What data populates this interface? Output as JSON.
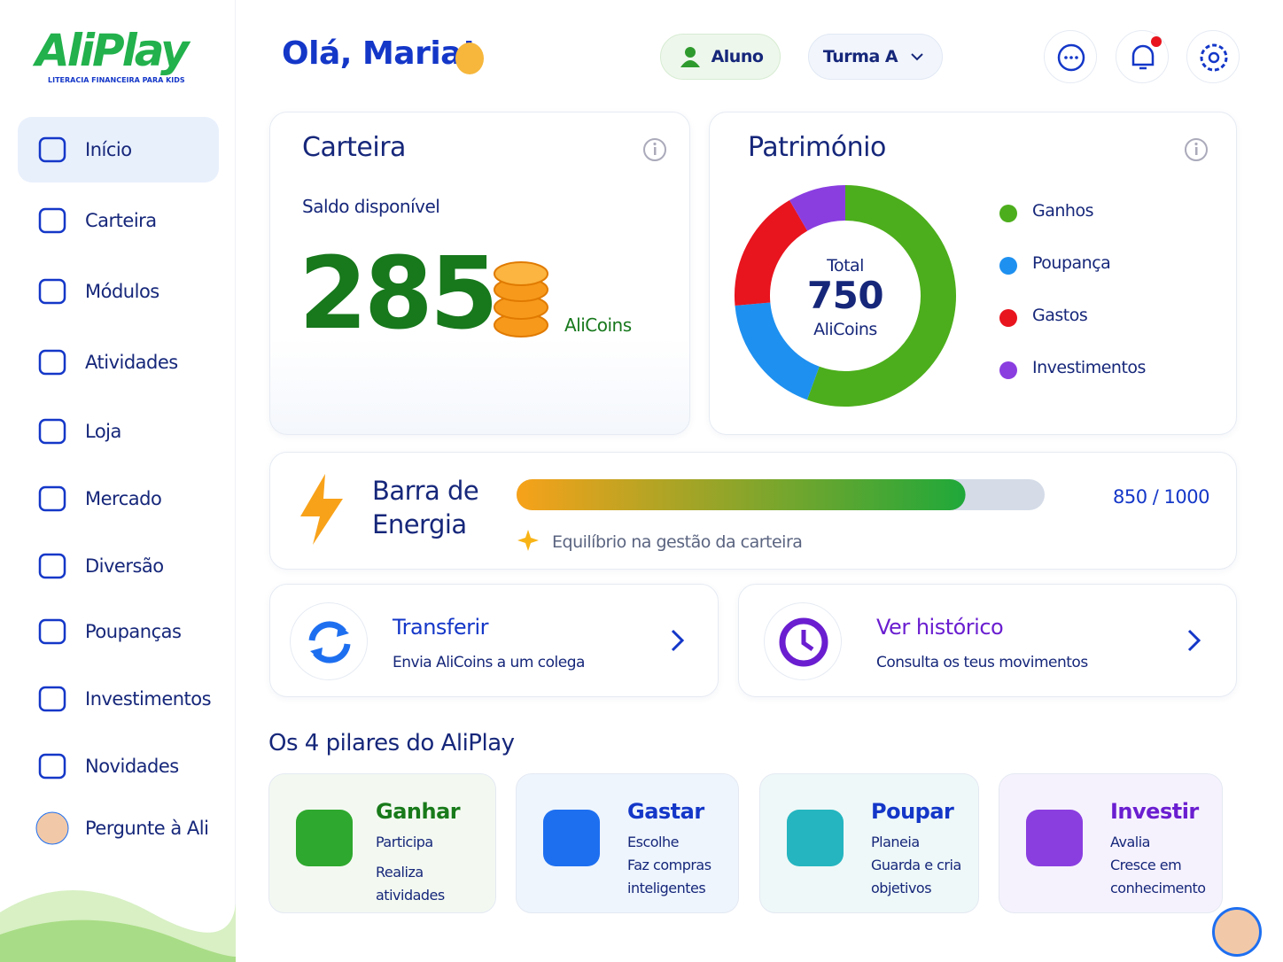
{
  "logo": {
    "title": "AliPlay",
    "tagline": "LITERACIA FINANCEIRA PARA KIDS"
  },
  "nav": {
    "active": 0,
    "items": [
      "Início",
      "Carteira",
      "Módulos",
      "Atividades",
      "Loja",
      "Mercado",
      "Diversão",
      "Poupanças",
      "Investimentos",
      "Novidades",
      "Pergunte à Ali"
    ]
  },
  "header": {
    "greeting": "Olá, Maria!",
    "role": "Aluno",
    "class": "Turma A"
  },
  "wallet": {
    "title": "Carteira",
    "subtitle": "Saldo disponível",
    "balance": 285,
    "unit": "AliCoins"
  },
  "assets": {
    "title": "Património",
    "total_label": "Total",
    "total": 750,
    "unit": "AliCoins",
    "segments": [
      {
        "name": "Ganhos",
        "color": "#4cae1c",
        "value": 417
      },
      {
        "name": "Poupança",
        "color": "#1e90f0",
        "value": 135
      },
      {
        "name": "Gastos",
        "color": "#e8141e",
        "value": 135
      },
      {
        "name": "Investimentos",
        "color": "#8a3ee0",
        "value": 63
      }
    ]
  },
  "energy": {
    "title": "Barra de Energia",
    "value": 850,
    "max": 1000,
    "label": "850 / 1000",
    "note": "Equilíbrio na gestão da carteira"
  },
  "actions": [
    {
      "title": "Transferir",
      "subtitle": "Envia AliCoins a um colega"
    },
    {
      "title": "Ver histórico",
      "subtitle": "Consulta os teus movimentos"
    }
  ],
  "pillars": {
    "title": "Os 4 pilares do AliPlay",
    "items": [
      {
        "title": "Ganhar",
        "lines": [
          "Participa",
          "Realiza atividades"
        ]
      },
      {
        "title": "Gastar",
        "lines": [
          "Escolhe",
          "Faz compras inteligentes"
        ]
      },
      {
        "title": "Poupar",
        "lines": [
          "Planeia",
          "Guarda e cria objetivos"
        ]
      },
      {
        "title": "Investir",
        "lines": [
          "Avalia",
          "Cresce em conhecimento"
        ]
      }
    ]
  }
}
